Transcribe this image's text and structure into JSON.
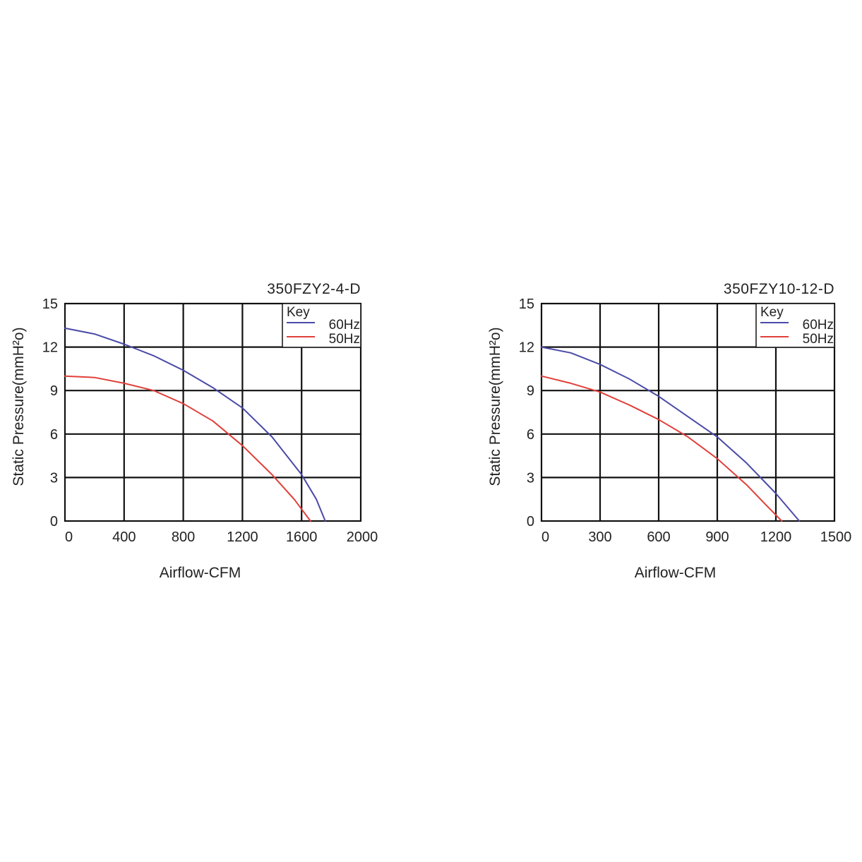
{
  "chart_data": [
    {
      "type": "line",
      "title": "350FZY2-4-D",
      "xlabel": "Airflow-CFM",
      "ylabel": "Static Pressure(mmH²o)",
      "xlim": [
        0,
        2000
      ],
      "ylim": [
        0,
        15
      ],
      "xticks": [
        "0",
        "400",
        "800",
        "1200",
        "1600",
        "2000"
      ],
      "yticks": [
        "0",
        "3",
        "6",
        "9",
        "12",
        "15"
      ],
      "grid": true,
      "legend": {
        "title": "Key",
        "position": "top-right"
      },
      "series": [
        {
          "name": "60Hz",
          "color": "#4a4aa8",
          "points": [
            [
              0,
              13.3
            ],
            [
              200,
              12.9
            ],
            [
              400,
              12.2
            ],
            [
              600,
              11.4
            ],
            [
              800,
              10.4
            ],
            [
              1000,
              9.2
            ],
            [
              1200,
              7.8
            ],
            [
              1400,
              5.8
            ],
            [
              1600,
              3.2
            ],
            [
              1700,
              1.5
            ],
            [
              1760,
              0
            ]
          ]
        },
        {
          "name": "50Hz",
          "color": "#e0403a",
          "points": [
            [
              0,
              10.0
            ],
            [
              200,
              9.9
            ],
            [
              400,
              9.5
            ],
            [
              600,
              9.0
            ],
            [
              800,
              8.1
            ],
            [
              1000,
              6.9
            ],
            [
              1200,
              5.2
            ],
            [
              1400,
              3.2
            ],
            [
              1550,
              1.5
            ],
            [
              1660,
              0
            ]
          ]
        }
      ]
    },
    {
      "type": "line",
      "title": "350FZY10-12-D",
      "xlabel": "Airflow-CFM",
      "ylabel": "Static Pressure(mmH²o)",
      "xlim": [
        0,
        1500
      ],
      "ylim": [
        0,
        15
      ],
      "xticks": [
        "0",
        "300",
        "600",
        "900",
        "1200",
        "1500"
      ],
      "yticks": [
        "0",
        "3",
        "6",
        "9",
        "12",
        "15"
      ],
      "grid": true,
      "legend": {
        "title": "Key",
        "position": "top-right"
      },
      "series": [
        {
          "name": "60Hz",
          "color": "#4a4aa8",
          "points": [
            [
              0,
              12.0
            ],
            [
              150,
              11.6
            ],
            [
              300,
              10.8
            ],
            [
              450,
              9.8
            ],
            [
              600,
              8.6
            ],
            [
              750,
              7.2
            ],
            [
              900,
              5.8
            ],
            [
              1050,
              4.0
            ],
            [
              1200,
              1.9
            ],
            [
              1320,
              0
            ]
          ]
        },
        {
          "name": "50Hz",
          "color": "#e0403a",
          "points": [
            [
              0,
              10.0
            ],
            [
              150,
              9.5
            ],
            [
              300,
              8.9
            ],
            [
              450,
              8.0
            ],
            [
              600,
              7.0
            ],
            [
              750,
              5.8
            ],
            [
              900,
              4.3
            ],
            [
              1050,
              2.5
            ],
            [
              1150,
              1.1
            ],
            [
              1230,
              0
            ]
          ]
        }
      ]
    }
  ]
}
